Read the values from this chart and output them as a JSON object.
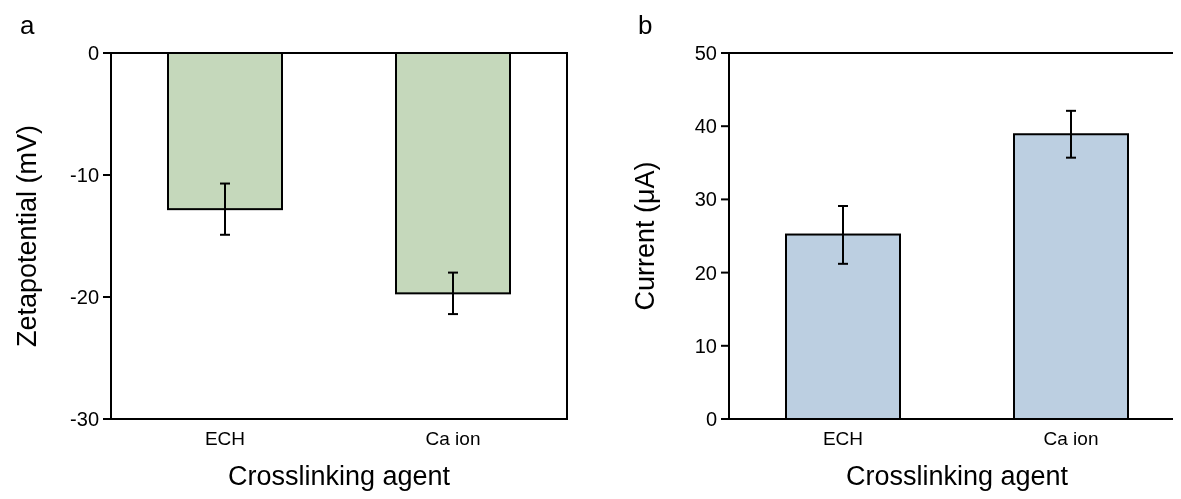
{
  "chart_data": [
    {
      "type": "bar",
      "categories": [
        "ECH",
        "Ca ion"
      ],
      "values": [
        -12.8,
        -19.7
      ],
      "errors": [
        [
          -14.9,
          -10.7
        ],
        [
          -21.4,
          -18.0
        ]
      ],
      "color": "#c5d8bb",
      "xlabel": "Crosslinking agent",
      "ylabel": "Zetapotential (mV)",
      "ylim": [
        -30,
        0
      ],
      "yticks": [
        0,
        -10,
        -20,
        -30
      ],
      "annotations": [
        "a"
      ]
    },
    {
      "type": "bar",
      "categories": [
        "ECH",
        "Ca ion"
      ],
      "values": [
        25.2,
        38.9
      ],
      "errors": [
        [
          21.2,
          29.1
        ],
        [
          35.7,
          42.1
        ]
      ],
      "color": "#bccfe1",
      "xlabel": "Crosslinking agent",
      "ylabel": "Current (μA)",
      "ylim": [
        0,
        50
      ],
      "yticks": [
        0,
        10,
        20,
        30,
        40,
        50
      ],
      "annotations": [
        "b"
      ]
    }
  ]
}
